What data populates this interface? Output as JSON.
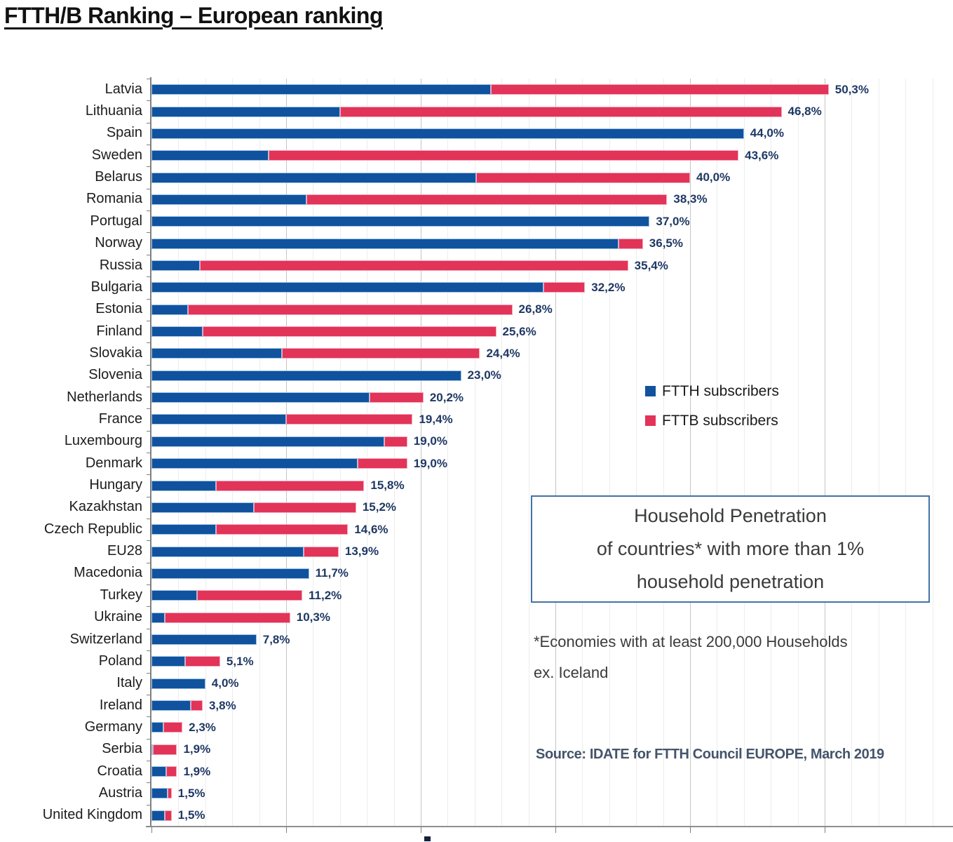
{
  "title": "FTTH/B Ranking – European ranking",
  "legend": {
    "items": [
      {
        "label": "FTTH subscribers",
        "color": "#10529E"
      },
      {
        "label": "FTTB subscribers",
        "color": "#E23358"
      }
    ]
  },
  "annotation_box": {
    "lines": [
      "Household Penetration",
      "of countries* with more than 1%",
      "household penetration"
    ],
    "border_color": "#4472A4"
  },
  "footnote_lines": [
    "*Economies with at least 200,000 Households",
    "ex. Iceland"
  ],
  "source": "Source: IDATE for FTTH Council EUROPE, March 2019",
  "colors": {
    "ftth_blue": "#10529E",
    "fttb_pink": "#E23358",
    "value_label_navy": "#1F3864",
    "gridline_major": "#c5c5c5",
    "gridline_minor": "#ededed"
  },
  "chart_data": {
    "type": "bar",
    "orientation": "horizontal",
    "stacked": true,
    "title": "FTTH/B Ranking – European ranking",
    "xlabel": "",
    "ylabel": "",
    "xlim": [
      0,
      59.5
    ],
    "grid": {
      "minor_step_pct": 2,
      "major_step_pct": 10
    },
    "legend_position": "inside-right-upper",
    "categories": [
      "Latvia",
      "Lithuania",
      "Spain",
      "Sweden",
      "Belarus",
      "Romania",
      "Portugal",
      "Norway",
      "Russia",
      "Bulgaria",
      "Estonia",
      "Finland",
      "Slovakia",
      "Slovenia",
      "Netherlands",
      "France",
      "Luxembourg",
      "Denmark",
      "Hungary",
      "Kazakhstan",
      "Czech Republic",
      "EU28",
      "Macedonia",
      "Turkey",
      "Ukraine",
      "Switzerland",
      "Poland",
      "Italy",
      "Ireland",
      "Germany",
      "Serbia",
      "Croatia",
      "Austria",
      "United Kingdom"
    ],
    "series": [
      {
        "name": "FTTH subscribers",
        "values": [
          25.2,
          14.0,
          44.0,
          8.7,
          24.1,
          11.5,
          37.0,
          34.7,
          3.6,
          29.1,
          2.7,
          3.8,
          9.7,
          23.0,
          16.2,
          10.0,
          17.3,
          15.3,
          4.8,
          7.6,
          4.8,
          11.3,
          11.7,
          3.4,
          1.0,
          7.8,
          2.5,
          4.0,
          2.9,
          0.9,
          0.1,
          1.1,
          1.2,
          1.0
        ]
      },
      {
        "name": "FTTB subscribers",
        "values": [
          25.1,
          32.8,
          0,
          34.9,
          15.9,
          26.8,
          0,
          1.8,
          31.8,
          3.1,
          24.1,
          21.8,
          14.7,
          0,
          4.0,
          9.4,
          1.7,
          3.7,
          11.0,
          7.6,
          9.8,
          2.6,
          0,
          7.8,
          9.3,
          0,
          2.6,
          0,
          0.9,
          1.4,
          1.8,
          0.8,
          0.3,
          0.5
        ]
      }
    ],
    "totals": [
      50.3,
      46.8,
      44.0,
      43.6,
      40.0,
      38.3,
      37.0,
      36.5,
      35.4,
      32.2,
      26.8,
      25.6,
      24.4,
      23.0,
      20.2,
      19.4,
      19.0,
      19.0,
      15.8,
      15.2,
      14.6,
      13.9,
      11.7,
      11.2,
      10.3,
      7.8,
      5.1,
      4.0,
      3.8,
      2.3,
      1.9,
      1.9,
      1.5,
      1.5
    ],
    "total_labels": [
      "50,3%",
      "46,8%",
      "44,0%",
      "43,6%",
      "40,0%",
      "38,3%",
      "37,0%",
      "36,5%",
      "35,4%",
      "32,2%",
      "26,8%",
      "25,6%",
      "24,4%",
      "23,0%",
      "20,2%",
      "19,4%",
      "19,0%",
      "19,0%",
      "15,8%",
      "15,2%",
      "14,6%",
      "13,9%",
      "11,7%",
      "11,2%",
      "10,3%",
      "7,8%",
      "5,1%",
      "4,0%",
      "3,8%",
      "2,3%",
      "1,9%",
      "1,9%",
      "1,5%",
      "1,5%"
    ]
  }
}
